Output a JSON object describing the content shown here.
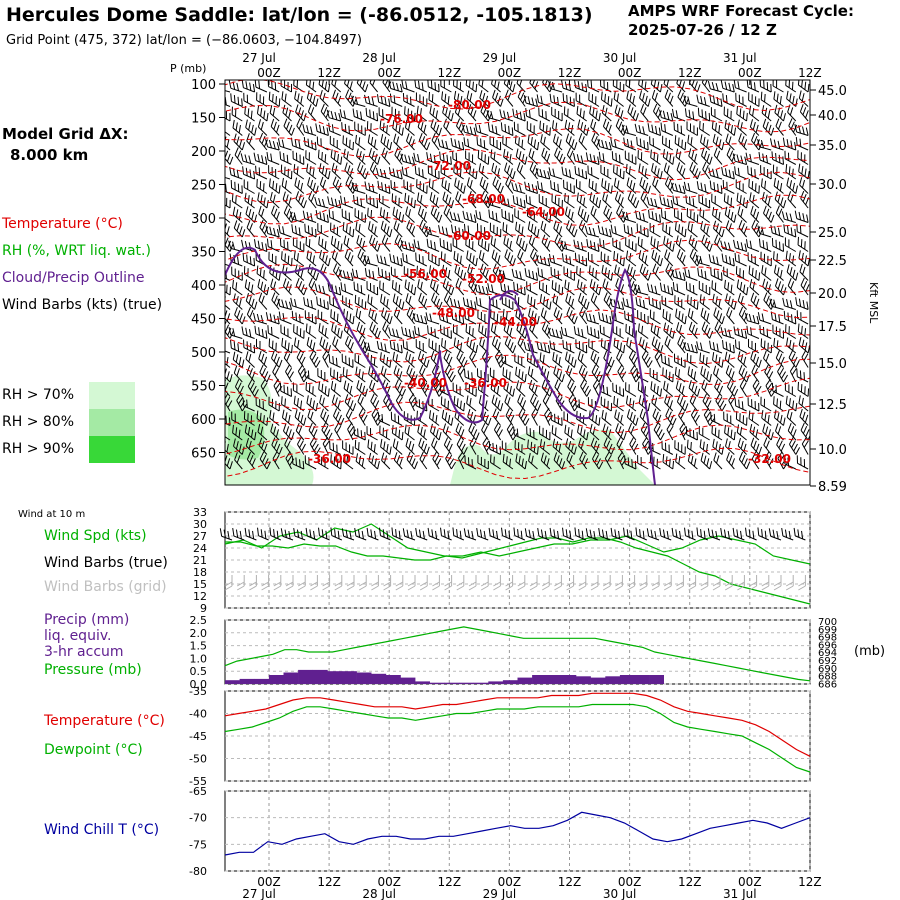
{
  "header": {
    "title": "Hercules Dome Saddle:  lat/lon = (-86.0512, -105.1813)",
    "grid_point": "Grid Point (475, 372) lat/lon = (−86.0603, −104.8497)",
    "cycle_line1": "AMPS WRF Forecast Cycle:",
    "cycle_line2": "2025-07-26 / 12  Z"
  },
  "left_labels": {
    "grid_dx_line1": "Model Grid ΔX:",
    "grid_dx_line2": "8.000 km",
    "temperature": "Temperature (°C)",
    "rh": "RH (%, WRT liq. wat.)",
    "cloud": "Cloud/Precip Outline",
    "wind_barbs": "Wind Barbs (kts) (true)",
    "rh70": "RH > 70%",
    "rh80": "RH > 80%",
    "rh90": "RH > 90%",
    "wind10m": "Wind at 10 m",
    "wind_spd": "Wind Spd (kts)",
    "wind_true": "Wind Barbs (true)",
    "wind_grid": "Wind Barbs (grid)",
    "precip1": "Precip (mm)",
    "precip2": "liq. equiv.",
    "precip3": "3-hr accum",
    "pressure": "Pressure (mb)",
    "temp_lower": "Temperature (°C)",
    "dewpoint": "Dewpoint (°C)",
    "windchill": "Wind Chill T (°C)",
    "mb_unit": "(mb)",
    "kft_msl": "Kft MSL",
    "p_mb": "P (mb)"
  },
  "colors": {
    "temperature": "#e00000",
    "rh": "#00b000",
    "cloud": "#602090",
    "wind": "#000000",
    "grid_wind": "#b0b0b0",
    "windchill": "#0000a0",
    "rh70": "#d4f8d4",
    "rh80": "#a4eaa4",
    "rh90": "#38d838"
  },
  "chart_data": [
    {
      "type": "contour",
      "name": "cross-section",
      "x_ticks_top": [
        "00Z",
        "12Z",
        "00Z",
        "12Z",
        "00Z",
        "12Z",
        "00Z",
        "12Z",
        "00Z",
        "12Z"
      ],
      "x_dates": [
        "27 Jul",
        "28 Jul",
        "29 Jul",
        "30 Jul",
        "31 Jul"
      ],
      "y_pressure_ticks": [
        "100",
        "150",
        "200",
        "250",
        "300",
        "350",
        "400",
        "450",
        "500",
        "550",
        "600",
        "650"
      ],
      "y_kft_ticks": [
        "45.0",
        "40.0",
        "35.0",
        "30.0",
        "25.0",
        "22.5",
        "20.0",
        "17.5",
        "15.0",
        "12.5",
        "10.0",
        "8.59"
      ],
      "temperature_labels": [
        "-80.00",
        "-76.00",
        "-72.00",
        "-68.00",
        "-64.00",
        "-60.00",
        "-56.00",
        "-52.00",
        "-48.00",
        "-44.00",
        "-40.00",
        "-36.00",
        "-36.00",
        "-32.00"
      ]
    },
    {
      "type": "line",
      "name": "wind-speed",
      "ylim": [
        9,
        33
      ],
      "y_ticks": [
        "33",
        "30",
        "27",
        "24",
        "21",
        "18",
        "15",
        "12",
        "9"
      ],
      "x": [
        0,
        3,
        6,
        9,
        12,
        15,
        18,
        21,
        24,
        27,
        30,
        33,
        36,
        39,
        42,
        45,
        48,
        51,
        54,
        57,
        60,
        63,
        66,
        69,
        72,
        75,
        78,
        81,
        84,
        87,
        90,
        93,
        96
      ],
      "values": [
        25,
        26,
        24,
        27,
        28,
        26,
        29,
        28,
        30,
        27,
        24,
        23,
        22,
        22,
        23,
        22,
        23,
        24,
        25,
        25,
        26,
        26,
        27,
        25,
        23,
        24,
        26,
        27,
        26,
        25,
        22,
        21,
        20
      ],
      "series_b": [
        25.5,
        25.5,
        24.5,
        24.5,
        24,
        25,
        24.5,
        24.5,
        23,
        22,
        22,
        21.5,
        21,
        21,
        22,
        21.5,
        22.5,
        23.5,
        24.5,
        25.5,
        26.5,
        26.5,
        25.5,
        26.5,
        26.5,
        25.5,
        24,
        23,
        22,
        20,
        18,
        17,
        15,
        14,
        13,
        12,
        11,
        10
      ]
    },
    {
      "type": "bar+line",
      "name": "precip-pressure",
      "precip_ylim": [
        0,
        2.5
      ],
      "precip_ticks": [
        "2.5",
        "2.0",
        "1.5",
        "1.0",
        "0.5",
        "0.0"
      ],
      "precip_values": [
        0.15,
        0.2,
        0.2,
        0.35,
        0.45,
        0.55,
        0.55,
        0.5,
        0.5,
        0.45,
        0.4,
        0.35,
        0.25,
        0.1,
        0.05,
        0.05,
        0.05,
        0.05,
        0.1,
        0.15,
        0.25,
        0.35,
        0.35,
        0.35,
        0.3,
        0.25,
        0.3,
        0.35,
        0.35,
        0.35,
        0,
        0,
        0,
        0,
        0,
        0,
        0,
        0,
        0,
        0
      ],
      "pressure_ylim": [
        686,
        700
      ],
      "pressure_ticks": [
        "700",
        "699",
        "698",
        "696",
        "694",
        "692",
        "690",
        "688",
        "686"
      ],
      "pressure_values": [
        690,
        691,
        691.5,
        692,
        692.5,
        693.5,
        693.5,
        693,
        693,
        693,
        693.5,
        694,
        694.5,
        695,
        695.5,
        696,
        696.5,
        697,
        697.5,
        698,
        698.5,
        698,
        697.5,
        697,
        696.5,
        696,
        696,
        696,
        696,
        696,
        696,
        696,
        695.5,
        695,
        694.5,
        694,
        693,
        692.5,
        692,
        691.5,
        691,
        690.5,
        690,
        689.5,
        689,
        688.5,
        688,
        687.5,
        687,
        686.7
      ]
    },
    {
      "type": "line",
      "name": "temperature-dewpoint",
      "ylim": [
        -55,
        -35
      ],
      "y_ticks": [
        "-35",
        "-40",
        "-45",
        "-50",
        "-55"
      ],
      "temperature": [
        -40.5,
        -40,
        -39.5,
        -39,
        -38,
        -37,
        -36.5,
        -36.5,
        -37,
        -37.5,
        -38,
        -38.5,
        -38.5,
        -38.5,
        -39,
        -38.5,
        -38,
        -38,
        -37.5,
        -37,
        -36.5,
        -36.5,
        -36.5,
        -36.5,
        -36,
        -36,
        -36,
        -35.5,
        -35.5,
        -35.5,
        -35.5,
        -36,
        -37,
        -38.5,
        -39.5,
        -40,
        -40.5,
        -41,
        -41.5,
        -42.5,
        -44,
        -46,
        -48,
        -49.5
      ],
      "dewpoint": [
        -44,
        -43.5,
        -43,
        -42,
        -41,
        -39.5,
        -38.5,
        -38.5,
        -39,
        -39.5,
        -40,
        -40.5,
        -41,
        -41,
        -41.5,
        -41,
        -40.5,
        -40,
        -40,
        -39.5,
        -39,
        -39,
        -39,
        -38.5,
        -38.5,
        -38.5,
        -38.5,
        -38,
        -38,
        -38,
        -38,
        -38.5,
        -40,
        -42,
        -43,
        -43.5,
        -44,
        -44.5,
        -45,
        -46.5,
        -48,
        -50,
        -52,
        -53
      ]
    },
    {
      "type": "line",
      "name": "wind-chill",
      "ylim": [
        -80,
        -65
      ],
      "y_ticks": [
        "-65",
        "-70",
        "-75",
        "-80"
      ],
      "values": [
        -77,
        -76.5,
        -76.5,
        -74.5,
        -75,
        -74,
        -73.5,
        -73,
        -74.5,
        -75,
        -74,
        -73.5,
        -73.5,
        -74,
        -74,
        -73.5,
        -73.5,
        -73,
        -72.5,
        -72,
        -71.5,
        -72,
        -72,
        -71.5,
        -70.5,
        -69,
        -69.5,
        -70,
        -71,
        -72.5,
        -74,
        -74.5,
        -74,
        -73,
        -72,
        -71.5,
        -71,
        -70.5,
        -71,
        -72,
        -71,
        -70
      ]
    }
  ]
}
